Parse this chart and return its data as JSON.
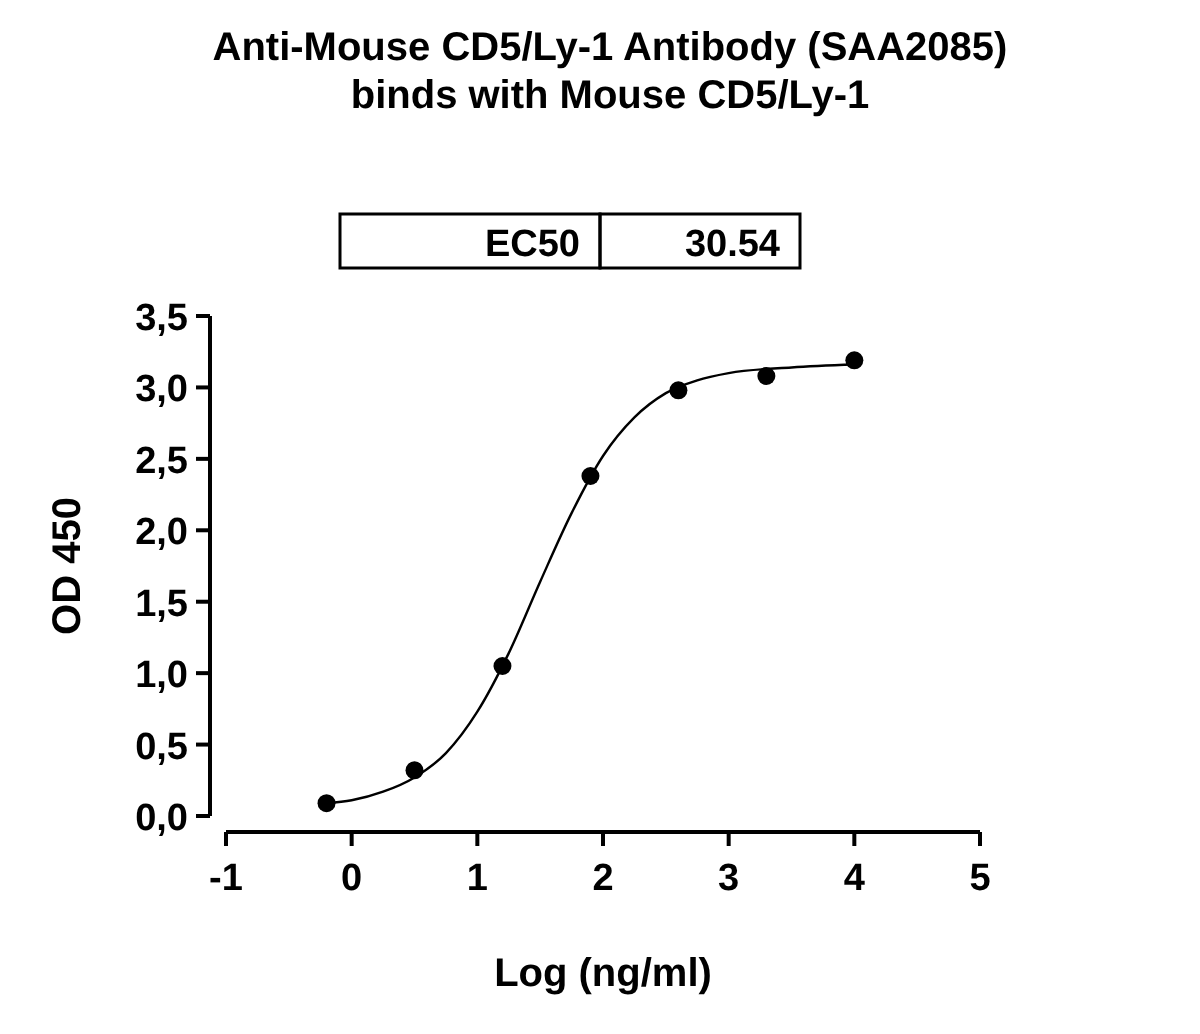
{
  "chart_data": {
    "type": "scatter",
    "title": "Anti-Mouse CD5/Ly-1 Antibody (SAA2085)\nbinds with Mouse CD5/Ly-1",
    "xlabel": "Log (ng/ml)",
    "ylabel": "OD 450",
    "annotations": [
      "EC50",
      "30.54"
    ],
    "xlim": [
      -1,
      5
    ],
    "xticks": [
      -1,
      0,
      1,
      2,
      3,
      4,
      5
    ],
    "ylim": [
      0,
      3.5
    ],
    "yticks": [
      {
        "value": 0,
        "label": "0,0"
      },
      {
        "value": 0.5,
        "label": "0,5"
      },
      {
        "value": 1,
        "label": "1,0"
      },
      {
        "value": 1.5,
        "label": "1,5"
      },
      {
        "value": 2,
        "label": "2,0"
      },
      {
        "value": 2.5,
        "label": "2,5"
      },
      {
        "value": 3,
        "label": "3,0"
      },
      {
        "value": 3.5,
        "label": "3,5"
      }
    ],
    "grid": false,
    "series": [
      {
        "color": "#000000",
        "marker": "circle",
        "x": [
          -0.2,
          0.5,
          1.2,
          1.9,
          2.6,
          3.3,
          4.0
        ],
        "values": [
          0.09,
          0.32,
          1.05,
          2.38,
          2.98,
          3.08,
          3.19
        ]
      },
      {
        "type": "line",
        "color": "#000000",
        "marker": "none",
        "line_style": "solid",
        "x": [
          -0.2,
          0,
          0.25,
          0.5,
          0.75,
          1,
          1.25,
          1.5,
          1.75,
          2,
          2.25,
          2.5,
          2.75,
          3,
          3.5,
          4
        ],
        "values": [
          0.09,
          0.11,
          0.17,
          0.27,
          0.44,
          0.73,
          1.14,
          1.64,
          2.12,
          2.52,
          2.79,
          2.96,
          3.05,
          3.1,
          3.14,
          3.16
        ]
      }
    ]
  }
}
